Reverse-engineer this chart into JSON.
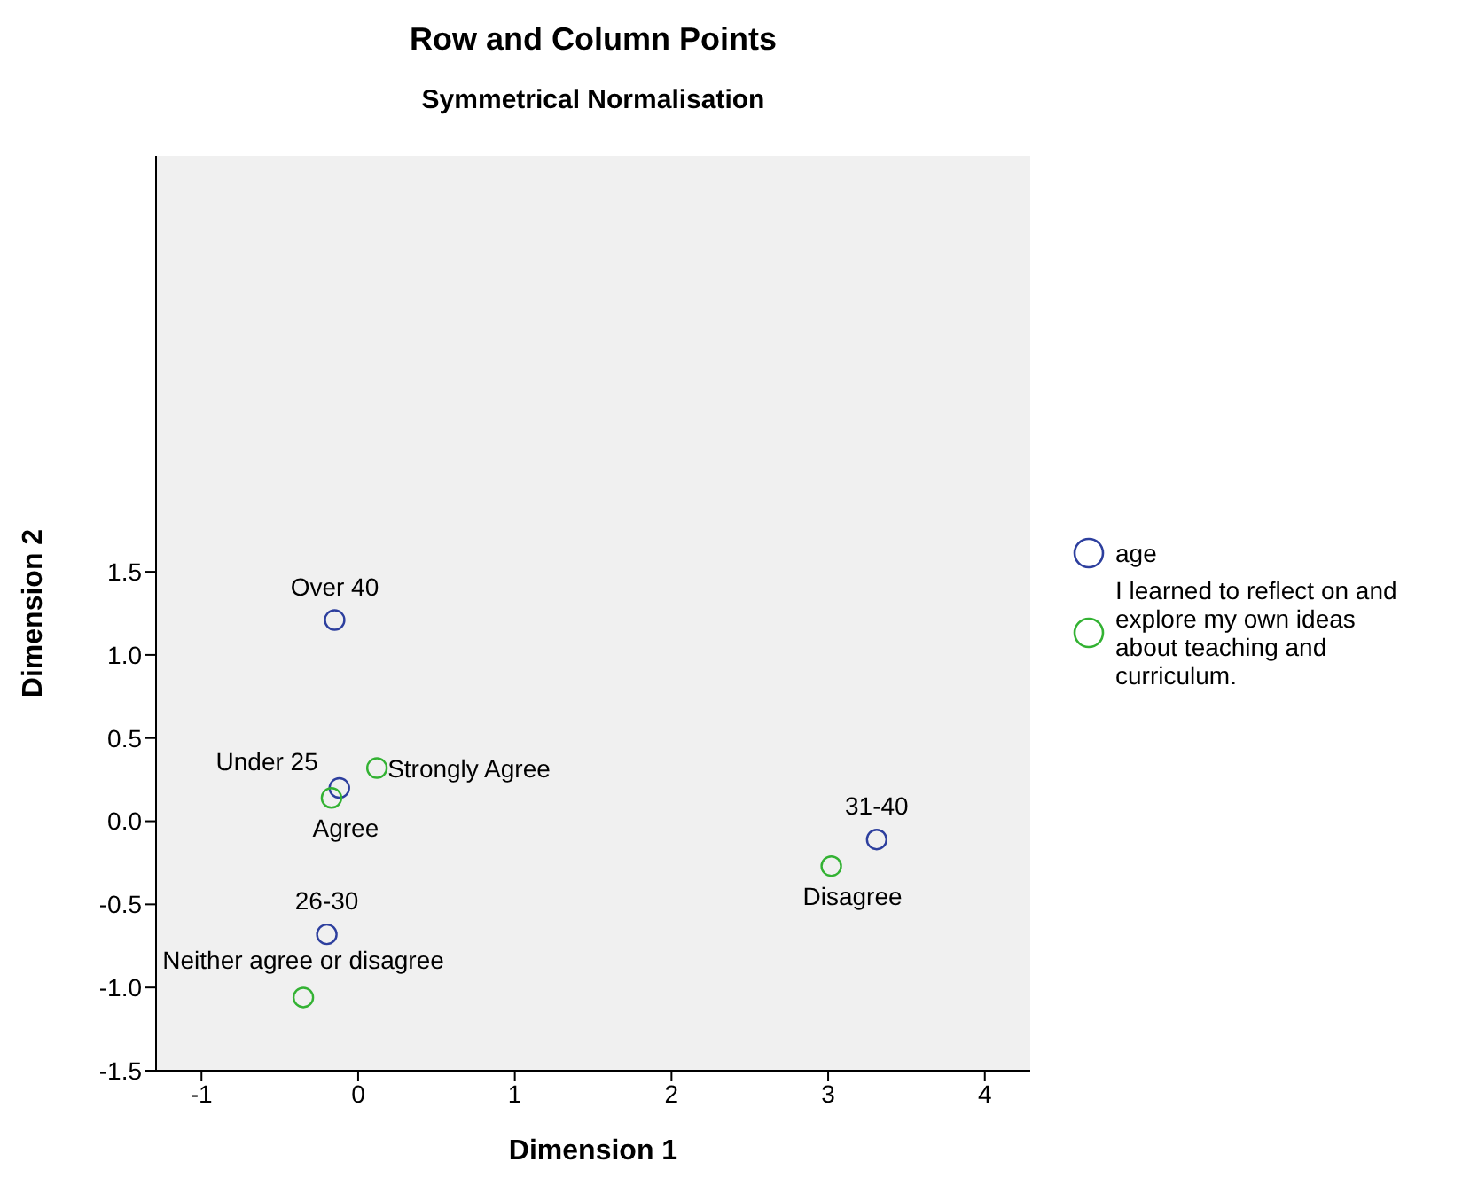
{
  "chart_data": {
    "type": "scatter",
    "title": "Row and Column Points",
    "subtitle": "Symmetrical Normalisation",
    "xlabel": "Dimension 1",
    "ylabel": "Dimension 2",
    "xlim": [
      -1.29,
      4.29
    ],
    "xticks": [
      -1,
      0,
      1,
      2,
      3,
      4
    ],
    "ylim": [
      -1.5,
      4.0
    ],
    "yticks": [
      {
        "value": -1.5,
        "label": "-1.5"
      },
      {
        "value": -1,
        "label": "-1.0"
      },
      {
        "value": -0.5,
        "label": "-0.5"
      },
      {
        "value": 0,
        "label": "0.0"
      },
      {
        "value": 0.5,
        "label": "0.5"
      },
      {
        "value": 1,
        "label": "1.0"
      },
      {
        "value": 1.5,
        "label": "1.5"
      }
    ],
    "series": [
      {
        "name": "age",
        "color": "#2d3f9e",
        "x": [
          -0.15,
          -0.12,
          -0.2,
          3.31
        ],
        "values": [
          1.21,
          0.2,
          -0.68,
          -0.11
        ]
      },
      {
        "name": "I learned to reflect on and explore my own ideas about teaching and curriculum.",
        "color": "#33b233",
        "x": [
          0.12,
          -0.17,
          -0.35,
          3.02
        ],
        "values": [
          0.32,
          0.14,
          -1.06,
          -0.27
        ]
      }
    ],
    "annotations": [
      {
        "text": "Over 40",
        "x": -0.15,
        "y": 1.21
      },
      {
        "text": "Under 25",
        "x": -0.12,
        "y": 0.2
      },
      {
        "text": "26-30",
        "x": -0.2,
        "y": -0.68
      },
      {
        "text": "31-40",
        "x": 3.31,
        "y": -0.11
      },
      {
        "text": "Strongly Agree",
        "x": 0.12,
        "y": 0.32
      },
      {
        "text": "Agree",
        "x": -0.17,
        "y": 0.14
      },
      {
        "text": "Neither agree or disagree",
        "x": -0.35,
        "y": -1.06
      },
      {
        "text": "Disagree",
        "x": 3.02,
        "y": -0.27
      }
    ],
    "marker": "circle",
    "grid": false,
    "legend": "right"
  }
}
